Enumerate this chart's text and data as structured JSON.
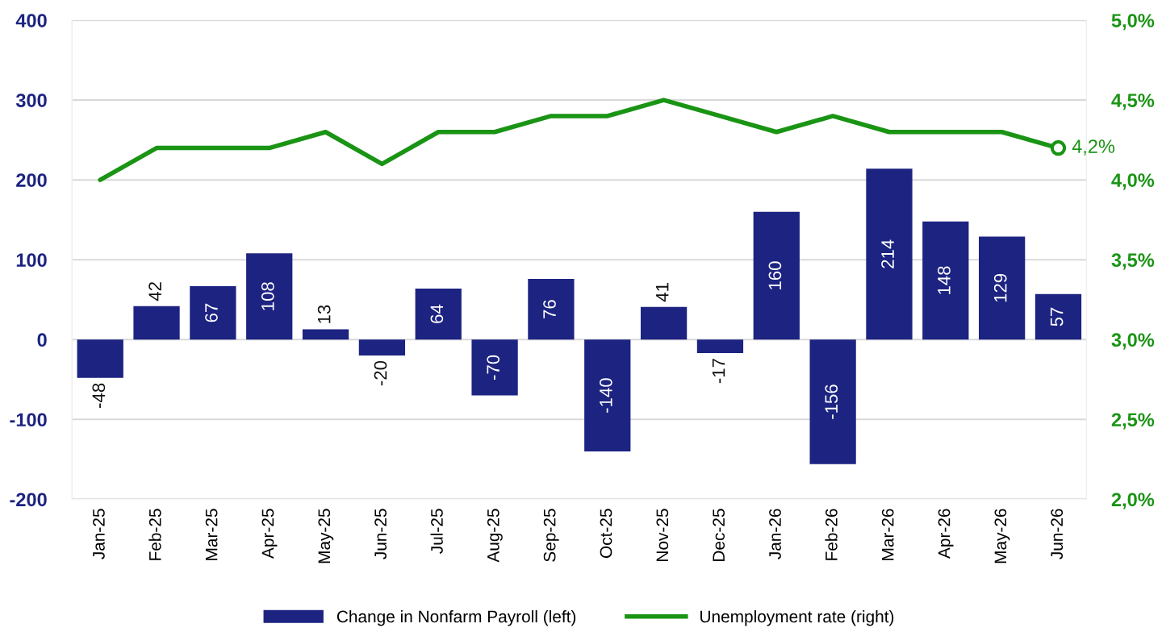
{
  "chart_data": {
    "type": "bar",
    "categories": [
      "Jan-25",
      "Feb-25",
      "Mar-25",
      "Apr-25",
      "May-25",
      "Jun-25",
      "Jul-25",
      "Aug-25",
      "Sep-25",
      "Oct-25",
      "Nov-25",
      "Dec-25",
      "Jan-26",
      "Feb-26",
      "Mar-26",
      "Apr-26",
      "May-26",
      "Jun-26"
    ],
    "series": [
      {
        "name": "Change in Nonfarm Payroll (left)",
        "color": "#1c2381",
        "values": [
          -48,
          42,
          67,
          108,
          13,
          -20,
          64,
          -70,
          76,
          -140,
          41,
          -17,
          160,
          -156,
          214,
          148,
          129,
          57
        ],
        "value_labels": [
          "-48",
          "42",
          "67",
          "108",
          "13",
          "-20",
          "64",
          "-70",
          "76",
          "-140",
          "41",
          "-17",
          "160",
          "-156",
          "214",
          "148",
          "129",
          "57"
        ]
      },
      {
        "name": "Unemployment rate (right)",
        "type": "line",
        "axis": "y2",
        "color": "#1a9414",
        "line_style": "solid",
        "values": [
          4.0,
          4.2,
          4.2,
          4.2,
          4.3,
          4.1,
          4.3,
          4.3,
          4.4,
          4.4,
          4.5,
          4.4,
          4.3,
          4.4,
          4.3,
          4.3,
          4.3,
          4.2
        ],
        "value_labels": [
          null,
          null,
          null,
          null,
          null,
          null,
          null,
          null,
          null,
          null,
          null,
          null,
          null,
          null,
          null,
          null,
          null,
          "4,2%"
        ]
      }
    ],
    "ylim": [
      -200,
      400
    ],
    "yticks": [
      -200,
      -100,
      0,
      100,
      200,
      300,
      400
    ],
    "y2lim": [
      2.0,
      5.0
    ],
    "y2ticks": [
      {
        "value": 2.0,
        "label": "2,0%"
      },
      {
        "value": 2.5,
        "label": "2,5%"
      },
      {
        "value": 3.0,
        "label": "3,0%"
      },
      {
        "value": 3.5,
        "label": "3,5%"
      },
      {
        "value": 4.0,
        "label": "4,0%"
      },
      {
        "value": 4.5,
        "label": "4,5%"
      },
      {
        "value": 5.0,
        "label": "5,0%"
      }
    ],
    "grid": "y",
    "legend": "bottom"
  }
}
